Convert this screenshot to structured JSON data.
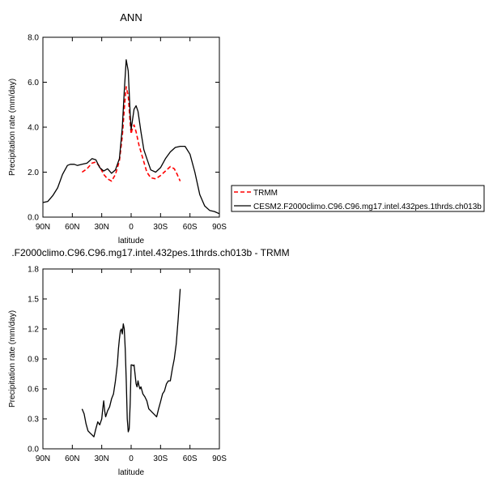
{
  "chart_data": [
    {
      "type": "line",
      "title": "ANN",
      "xlabel": "latitude",
      "ylabel": "Precipitation rate (mm/day)",
      "xlim": [
        90,
        -90
      ],
      "ylim": [
        0,
        8
      ],
      "x_ticks": [
        90,
        60,
        30,
        0,
        -30,
        -60,
        -90
      ],
      "x_tick_labels": [
        "90N",
        "60N",
        "30N",
        "0",
        "30S",
        "60S",
        "90S"
      ],
      "y_ticks": [
        0,
        2,
        4,
        6,
        8
      ],
      "y_tick_labels": [
        "0.0",
        "2.0",
        "4.0",
        "6.0",
        "8.0"
      ],
      "grid": false,
      "legend_position": "right",
      "series": [
        {
          "name": "TRMM",
          "color": "#ff0000",
          "dash": "dashed",
          "x": [
            50,
            45,
            40,
            36,
            32,
            28,
            24,
            20,
            16,
            12,
            9,
            7,
            5,
            3,
            1,
            0,
            -1,
            -3,
            -5,
            -8,
            -12,
            -16,
            -20,
            -25,
            -30,
            -35,
            -40,
            -44,
            -47,
            -50
          ],
          "y": [
            2.0,
            2.15,
            2.4,
            2.45,
            2.25,
            1.9,
            1.7,
            1.6,
            1.9,
            2.5,
            3.6,
            4.8,
            5.8,
            5.4,
            4.2,
            3.7,
            3.9,
            4.1,
            3.8,
            3.2,
            2.6,
            2.0,
            1.75,
            1.7,
            1.85,
            2.05,
            2.25,
            2.15,
            1.9,
            1.6
          ]
        },
        {
          "name": "CESM2.F2000climo.C96.C96.mg17.intel.432pes.1thrds.ch013b",
          "color": "#000000",
          "dash": "solid",
          "x": [
            90,
            85,
            80,
            75,
            70,
            65,
            62,
            58,
            55,
            50,
            45,
            40,
            36,
            32,
            28,
            24,
            20,
            16,
            12,
            9,
            7,
            5,
            3,
            1,
            0,
            -1,
            -3,
            -5,
            -7,
            -10,
            -13,
            -16,
            -20,
            -25,
            -30,
            -35,
            -40,
            -45,
            -50,
            -55,
            -60,
            -65,
            -70,
            -75,
            -80,
            -85,
            -90
          ],
          "y": [
            0.65,
            0.7,
            0.95,
            1.3,
            1.9,
            2.3,
            2.35,
            2.35,
            2.3,
            2.35,
            2.4,
            2.6,
            2.55,
            2.2,
            2.05,
            2.15,
            1.95,
            2.1,
            2.6,
            4.0,
            5.6,
            7.0,
            6.5,
            4.6,
            3.9,
            4.2,
            4.8,
            4.95,
            4.7,
            3.8,
            3.0,
            2.6,
            2.1,
            2.0,
            2.2,
            2.6,
            2.9,
            3.1,
            3.15,
            3.15,
            2.8,
            2.0,
            1.0,
            0.5,
            0.3,
            0.25,
            0.15
          ]
        }
      ]
    },
    {
      "type": "line",
      "title": ".F2000climo.C96.C96.mg17.intel.432pes.1thrds.ch013b - TRMM",
      "xlabel": "latitude",
      "ylabel": "Precipitation rate (mm/day)",
      "xlim": [
        90,
        -90
      ],
      "ylim": [
        0,
        1.8
      ],
      "x_ticks": [
        90,
        60,
        30,
        0,
        -30,
        -60,
        -90
      ],
      "x_tick_labels": [
        "90N",
        "60N",
        "30N",
        "0",
        "30S",
        "60S",
        "90S"
      ],
      "y_ticks": [
        0,
        0.3,
        0.6,
        0.9,
        1.2,
        1.5,
        1.8
      ],
      "y_tick_labels": [
        "0.0",
        "0.3",
        "0.6",
        "0.9",
        "1.2",
        "1.5",
        "1.8"
      ],
      "grid": false,
      "series": [
        {
          "name": "",
          "color": "#000000",
          "dash": "solid",
          "x": [
            50,
            48,
            46,
            44,
            42,
            40,
            38,
            36,
            34,
            32,
            30,
            29,
            28,
            27,
            26,
            24,
            22,
            20,
            18,
            16,
            14,
            13,
            12,
            11,
            10,
            9,
            8,
            7,
            6,
            5,
            4,
            3,
            2,
            1,
            0,
            -1,
            -2,
            -3,
            -4,
            -5,
            -6,
            -7,
            -8,
            -9,
            -10,
            -12,
            -14,
            -16,
            -18,
            -20,
            -22,
            -24,
            -26,
            -28,
            -30,
            -32,
            -34,
            -36,
            -38,
            -40,
            -42,
            -44,
            -46,
            -48,
            -50
          ],
          "y": [
            0.4,
            0.35,
            0.25,
            0.18,
            0.16,
            0.14,
            0.12,
            0.2,
            0.27,
            0.24,
            0.3,
            0.4,
            0.48,
            0.38,
            0.32,
            0.38,
            0.42,
            0.5,
            0.55,
            0.68,
            0.85,
            1.0,
            1.1,
            1.18,
            1.2,
            1.15,
            1.25,
            1.2,
            1.0,
            0.7,
            0.3,
            0.17,
            0.2,
            0.45,
            0.84,
            0.84,
            0.83,
            0.84,
            0.75,
            0.65,
            0.62,
            0.68,
            0.63,
            0.6,
            0.62,
            0.55,
            0.52,
            0.48,
            0.4,
            0.38,
            0.36,
            0.34,
            0.32,
            0.4,
            0.47,
            0.55,
            0.58,
            0.65,
            0.68,
            0.68,
            0.8,
            0.9,
            1.05,
            1.3,
            1.6
          ]
        }
      ]
    }
  ]
}
